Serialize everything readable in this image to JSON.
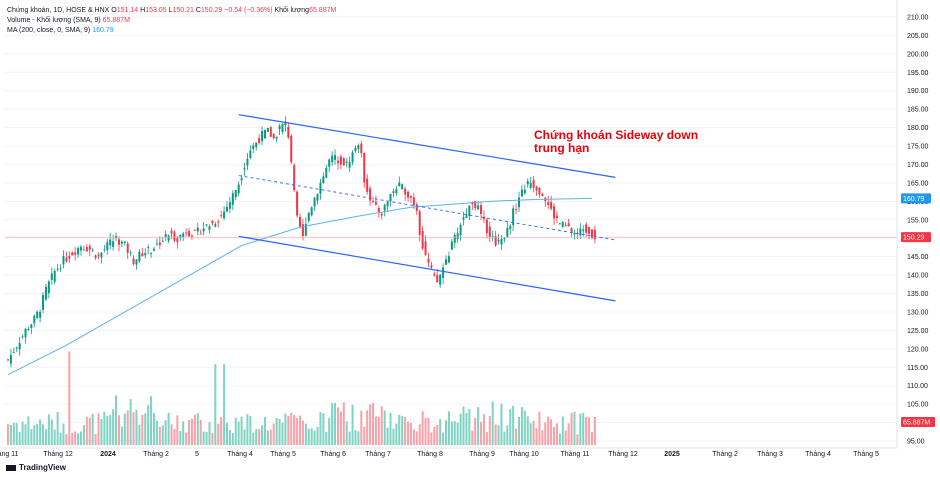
{
  "legend": {
    "symbol": "Chứng khoán, 1D, HOSE & HNX",
    "ohlc": {
      "o_label": "O",
      "o": "151.14",
      "h_label": "H",
      "h": "153.05",
      "l_label": "L",
      "l": "150.21",
      "c_label": "C",
      "c": "150.29",
      "change": "−0.54 (−0.36%)"
    },
    "volume_label": "Khối lượng",
    "volume_value": "65.887M",
    "volume_indicator": "Volume - Khối lượng (SMA, 9)",
    "volume_indicator_value": "65.887M",
    "ma_label": "MA (200, close, 0, SMA, 9)",
    "ma_value": "160.79"
  },
  "annotation": {
    "line1": "Chứng khoán Sideway down",
    "line2": "trung hạn",
    "color": "#e8000b"
  },
  "branding": {
    "label": "TradingView"
  },
  "colors": {
    "up": "#089981",
    "down": "#f23645",
    "vol_up": "#7fd3c3",
    "vol_down": "#f7a1a8",
    "ma": "#5fb3e6",
    "channel": "#2962ff",
    "grid": "#f0f3fa",
    "price_line": "#f23645"
  },
  "chart_data": {
    "type": "candlestick",
    "price_axis": {
      "min": 95,
      "max": 210,
      "ticks": [
        "210.00",
        "205.00",
        "200.00",
        "195.00",
        "190.00",
        "185.00",
        "180.00",
        "175.00",
        "170.00",
        "165.00",
        "160.00",
        "155.00",
        "150.00",
        "145.00",
        "140.00",
        "135.00",
        "130.00",
        "125.00",
        "120.00",
        "115.00",
        "110.00",
        "105.00",
        "100.00",
        "95.00"
      ]
    },
    "time_axis": {
      "labels": [
        "áng 11",
        "Tháng 12",
        "2024",
        "Tháng 2",
        "5",
        "Tháng 4",
        "Tháng 5",
        "Tháng 6",
        "Tháng 7",
        "Tháng 8",
        "Tháng 9",
        "Tháng 10",
        "Tháng 11",
        "Tháng 12",
        "2025",
        "Tháng 2",
        "Tháng 3",
        "Tháng 4",
        "Tháng 5"
      ]
    },
    "price_badges": {
      "ma": "160.79",
      "last": "150.29",
      "volume": "65.887M"
    },
    "close_path": [
      [
        0,
        117
      ],
      [
        3,
        121
      ],
      [
        6,
        125
      ],
      [
        9,
        128
      ],
      [
        11,
        131
      ],
      [
        13,
        136
      ],
      [
        16,
        141
      ],
      [
        19,
        144
      ],
      [
        22,
        146
      ],
      [
        25,
        148
      ],
      [
        28,
        147
      ],
      [
        31,
        145
      ],
      [
        34,
        148
      ],
      [
        37,
        150
      ],
      [
        40,
        148
      ],
      [
        43,
        144
      ],
      [
        46,
        146
      ],
      [
        49,
        147
      ],
      [
        52,
        149
      ],
      [
        55,
        151
      ],
      [
        58,
        150
      ],
      [
        61,
        152
      ],
      [
        64,
        151
      ],
      [
        67,
        153
      ],
      [
        70,
        154
      ],
      [
        73,
        156
      ],
      [
        76,
        160
      ],
      [
        79,
        165
      ],
      [
        81,
        170
      ],
      [
        83,
        174
      ],
      [
        85,
        176
      ],
      [
        87,
        178
      ],
      [
        89,
        179
      ],
      [
        91,
        177
      ],
      [
        93,
        180
      ],
      [
        95,
        181
      ],
      [
        96,
        178
      ],
      [
        97,
        171
      ],
      [
        98,
        162
      ],
      [
        99,
        155
      ],
      [
        100,
        153
      ],
      [
        101,
        150
      ],
      [
        102,
        155
      ],
      [
        104,
        159
      ],
      [
        106,
        163
      ],
      [
        108,
        167
      ],
      [
        110,
        171
      ],
      [
        112,
        172
      ],
      [
        114,
        171
      ],
      [
        116,
        170
      ],
      [
        118,
        173
      ],
      [
        120,
        176
      ],
      [
        121,
        172
      ],
      [
        122,
        166
      ],
      [
        124,
        161
      ],
      [
        126,
        158
      ],
      [
        128,
        157
      ],
      [
        130,
        160
      ],
      [
        132,
        163
      ],
      [
        134,
        164
      ],
      [
        136,
        163
      ],
      [
        138,
        161
      ],
      [
        140,
        158
      ],
      [
        141,
        152
      ],
      [
        142,
        148
      ],
      [
        144,
        143
      ],
      [
        146,
        139
      ],
      [
        147,
        138
      ],
      [
        149,
        142
      ],
      [
        151,
        146
      ],
      [
        153,
        150
      ],
      [
        155,
        154
      ],
      [
        157,
        157
      ],
      [
        159,
        160
      ],
      [
        161,
        158
      ],
      [
        163,
        154
      ],
      [
        165,
        151
      ],
      [
        167,
        149
      ],
      [
        169,
        150
      ],
      [
        171,
        152
      ],
      [
        173,
        157
      ],
      [
        175,
        161
      ],
      [
        177,
        164
      ],
      [
        179,
        165
      ],
      [
        181,
        164
      ],
      [
        183,
        162
      ],
      [
        185,
        159
      ],
      [
        187,
        156
      ],
      [
        189,
        154
      ],
      [
        191,
        153
      ],
      [
        193,
        152
      ],
      [
        195,
        151
      ],
      [
        197,
        153
      ],
      [
        199,
        152
      ],
      [
        201,
        150.3
      ]
    ],
    "ma200": [
      [
        0,
        113
      ],
      [
        20,
        121
      ],
      [
        40,
        130
      ],
      [
        60,
        139
      ],
      [
        80,
        148
      ],
      [
        100,
        153
      ],
      [
        120,
        156
      ],
      [
        138,
        158.4
      ],
      [
        152,
        159.2
      ],
      [
        165,
        160
      ],
      [
        180,
        160.5
      ],
      [
        200,
        160.79
      ]
    ],
    "volume_axis_ref": "65.887M",
    "channel": {
      "upper": [
        [
          79,
          183.5
        ],
        [
          208,
          166.5
        ]
      ],
      "mid": [
        [
          79,
          167
        ],
        [
          208,
          149.5
        ]
      ],
      "lower": [
        [
          79,
          150.5
        ],
        [
          208,
          133
        ]
      ]
    },
    "horizontal_line": 150.29
  }
}
